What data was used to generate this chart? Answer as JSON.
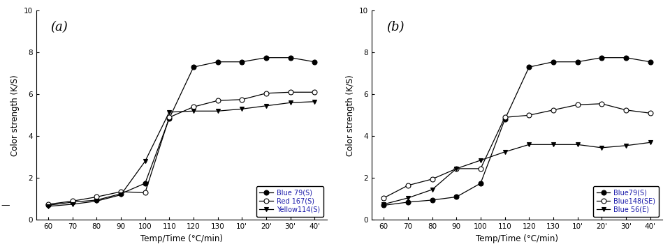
{
  "x_labels": [
    "60",
    "70",
    "80",
    "90",
    "100",
    "110",
    "120",
    "130",
    "10'",
    "20'",
    "30'",
    "40'"
  ],
  "x_positions": [
    0,
    1,
    2,
    3,
    4,
    5,
    6,
    7,
    8,
    9,
    10,
    11
  ],
  "panel_a": {
    "label": "(a)",
    "series": [
      {
        "name": "Blue 79(S)",
        "marker": "o",
        "filled": true,
        "y": [
          0.7,
          0.85,
          0.95,
          1.25,
          1.75,
          4.85,
          7.3,
          7.55,
          7.55,
          7.75,
          7.75,
          7.55
        ]
      },
      {
        "name": "Red 167(S)",
        "marker": "o",
        "filled": false,
        "y": [
          0.75,
          0.9,
          1.1,
          1.35,
          1.3,
          4.9,
          5.4,
          5.7,
          5.75,
          6.05,
          6.1,
          6.1
        ]
      },
      {
        "name": "Yellow114(S)",
        "marker": "v",
        "filled": true,
        "y": [
          0.65,
          0.75,
          0.9,
          1.2,
          2.8,
          5.15,
          5.2,
          5.2,
          5.3,
          5.45,
          5.6,
          5.65
        ]
      }
    ],
    "ylabel": "Color strength (K/S)",
    "xlabel": "Temp/Time (°C/min)",
    "ylim": [
      0,
      10
    ],
    "yticks": [
      0,
      2,
      4,
      6,
      8,
      10
    ],
    "show_dash": true
  },
  "panel_b": {
    "label": "(b)",
    "series": [
      {
        "name": "Blue79(S)",
        "marker": "o",
        "filled": true,
        "y": [
          0.7,
          0.85,
          0.95,
          1.1,
          1.75,
          4.8,
          7.3,
          7.55,
          7.55,
          7.75,
          7.75,
          7.55
        ]
      },
      {
        "name": "Blue148(SE)",
        "marker": "o",
        "filled": false,
        "y": [
          1.05,
          1.65,
          1.95,
          2.45,
          2.45,
          4.9,
          5.0,
          5.25,
          5.5,
          5.55,
          5.25,
          5.1
        ]
      },
      {
        "name": "Blue 56(E)",
        "marker": "v",
        "filled": true,
        "y": [
          0.75,
          1.05,
          1.45,
          2.45,
          2.85,
          3.25,
          3.6,
          3.6,
          3.6,
          3.45,
          3.55,
          3.7
        ]
      }
    ],
    "ylabel": "Color strength (K/S)",
    "xlabel": "Temp/Time (°C/min)",
    "ylim": [
      0,
      10
    ],
    "yticks": [
      0,
      2,
      4,
      6,
      8,
      10
    ],
    "show_dash": false
  },
  "line_color": "#000000",
  "line_width": 0.9,
  "marker_size": 5,
  "legend_fontsize": 7,
  "legend_text_color": "#1a1aaa",
  "axis_label_fontsize": 8.5,
  "tick_fontsize": 7.5,
  "panel_label_fontsize": 13,
  "background_color": "#ffffff"
}
